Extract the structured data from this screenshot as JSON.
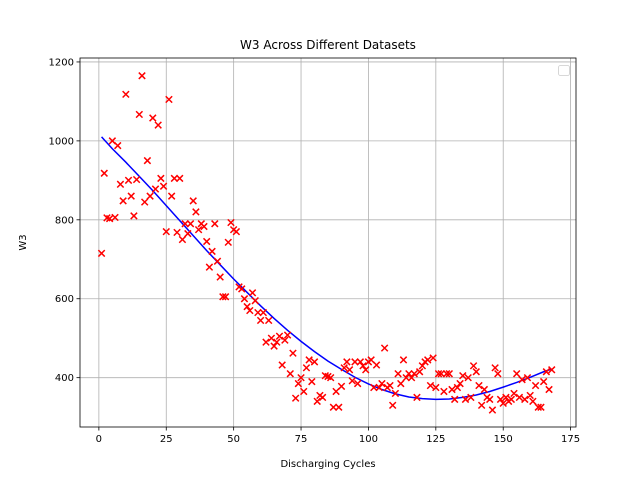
{
  "chart_data": {
    "type": "scatter",
    "title": "W3 Across Different Datasets",
    "xlabel": "Discharging Cycles",
    "ylabel": "W3",
    "xlim": [
      -7,
      177
    ],
    "ylim": [
      275,
      1210
    ],
    "xticks": [
      0,
      25,
      50,
      75,
      100,
      125,
      150,
      175
    ],
    "yticks": [
      400,
      600,
      800,
      1000,
      1200
    ],
    "xtick_labels": [
      "0",
      "25",
      "50",
      "75",
      "100",
      "125",
      "150",
      "175"
    ],
    "ytick_labels": [
      "400",
      "600",
      "800",
      "1000",
      "1200"
    ],
    "grid": true,
    "legend": "upper right (empty)",
    "series": [
      {
        "kind": "scatter",
        "marker": "x",
        "color": "#ff0000",
        "x": [
          1,
          2,
          3,
          4,
          5,
          6,
          7,
          8,
          9,
          10,
          11,
          12,
          13,
          14,
          15,
          16,
          17,
          18,
          19,
          20,
          21,
          22,
          23,
          24,
          25,
          26,
          27,
          28,
          29,
          30,
          31,
          32,
          33,
          34,
          35,
          36,
          37,
          38,
          39,
          40,
          41,
          42,
          43,
          44,
          45,
          46,
          47,
          48,
          49,
          50,
          51,
          52,
          53,
          54,
          55,
          56,
          57,
          58,
          59,
          60,
          61,
          62,
          63,
          64,
          65,
          66,
          67,
          68,
          69,
          70,
          71,
          72,
          73,
          74,
          75,
          76,
          77,
          78,
          79,
          80,
          81,
          82,
          83,
          84,
          85,
          86,
          87,
          88,
          89,
          90,
          91,
          92,
          93,
          94,
          95,
          96,
          97,
          98,
          99,
          100,
          101,
          102,
          103,
          104,
          105,
          106,
          107,
          108,
          109,
          110,
          111,
          112,
          113,
          114,
          115,
          116,
          117,
          118,
          119,
          120,
          121,
          122,
          123,
          124,
          125,
          126,
          127,
          128,
          129,
          130,
          131,
          132,
          133,
          134,
          135,
          136,
          137,
          138,
          139,
          140,
          141,
          142,
          143,
          144,
          145,
          146,
          147,
          148,
          149,
          150,
          151,
          152,
          153,
          154,
          155,
          156,
          157,
          158,
          159,
          160,
          161,
          162,
          163,
          164,
          165,
          166,
          167,
          168
        ],
        "y": [
          715,
          918,
          805,
          803,
          1000,
          806,
          988,
          890,
          848,
          1118,
          900,
          860,
          810,
          902,
          1067,
          1165,
          845,
          950,
          860,
          1058,
          878,
          1040,
          905,
          885,
          770,
          1105,
          860,
          905,
          768,
          905,
          750,
          790,
          765,
          790,
          848,
          820,
          775,
          790,
          783,
          745,
          680,
          720,
          790,
          695,
          655,
          605,
          605,
          743,
          793,
          775,
          770,
          630,
          625,
          600,
          580,
          570,
          615,
          595,
          565,
          545,
          565,
          490,
          545,
          500,
          480,
          490,
          505,
          432,
          495,
          508,
          410,
          462,
          348,
          385,
          400,
          365,
          425,
          445,
          390,
          440,
          340,
          355,
          350,
          405,
          403,
          400,
          325,
          365,
          325,
          378,
          425,
          440,
          420,
          392,
          440,
          385,
          440,
          430,
          420,
          440,
          445,
          375,
          432,
          375,
          385,
          475,
          375,
          380,
          330,
          360,
          410,
          385,
          445,
          400,
          410,
          400,
          410,
          350,
          415,
          430,
          440,
          445,
          380,
          450,
          375,
          410,
          410,
          365,
          410,
          410,
          370,
          345,
          375,
          385,
          405,
          345,
          400,
          350,
          430,
          415,
          380,
          330,
          370,
          350,
          345,
          318,
          425,
          410,
          345,
          335,
          350,
          340,
          345,
          360,
          410,
          350,
          395,
          345,
          400,
          355,
          340,
          380,
          325,
          325,
          390,
          415,
          370,
          420
        ]
      },
      {
        "kind": "line",
        "color": "#0000ff",
        "x": [
          1,
          5,
          10,
          15,
          20,
          25,
          30,
          35,
          40,
          45,
          50,
          55,
          60,
          65,
          70,
          75,
          80,
          85,
          90,
          95,
          100,
          105,
          110,
          115,
          120,
          125,
          130,
          135,
          140,
          145,
          150,
          155,
          160,
          165,
          168
        ],
        "y": [
          1010,
          980,
          946,
          910,
          874,
          836,
          798,
          760,
          722,
          686,
          650,
          616,
          582,
          550,
          520,
          492,
          466,
          442,
          421,
          401,
          384,
          370,
          359,
          351,
          347,
          345,
          346,
          350,
          356,
          365,
          376,
          388,
          401,
          415,
          422
        ]
      }
    ]
  }
}
